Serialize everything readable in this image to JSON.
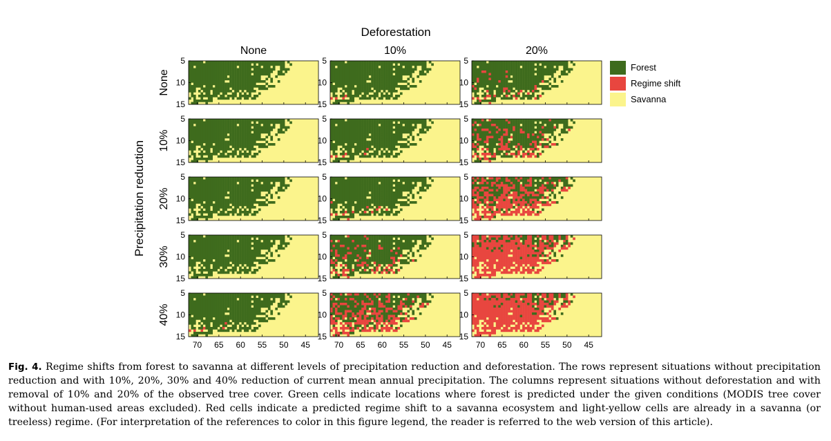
{
  "figure": {
    "column_header": "Deforestation",
    "column_titles": [
      "None",
      "10%",
      "20%"
    ],
    "row_header": "Precipitation reduction",
    "row_titles": [
      "None",
      "10%",
      "20%",
      "30%",
      "40%"
    ],
    "y_ticks": [
      "5",
      "10",
      "15"
    ],
    "x_ticks": [
      "70",
      "65",
      "60",
      "55",
      "50",
      "45"
    ],
    "colors": {
      "forest": "#3e6b1d",
      "regime_shift": "#e8463f",
      "savanna": "#fbf48c"
    },
    "legend": [
      {
        "label": "Forest",
        "color": "#3e6b1d"
      },
      {
        "label": "Regime shift",
        "color": "#e8463f"
      },
      {
        "label": "Savanna",
        "color": "#fbf48c"
      }
    ]
  },
  "chart_data": {
    "type": "heatmap",
    "xlabel": "",
    "ylabel": "",
    "xlim": [
      72,
      42
    ],
    "ylim": [
      5,
      15
    ],
    "xticks": [
      70,
      65,
      60,
      55,
      50,
      45
    ],
    "yticks": [
      5,
      10,
      15
    ],
    "categories": [
      "Forest",
      "Regime shift",
      "Savanna"
    ],
    "panels_rows": [
      "None",
      "10%",
      "20%",
      "30%",
      "40%"
    ],
    "panels_cols": [
      "None",
      "10%",
      "20%"
    ],
    "regime_shift_fraction_of_forest": [
      [
        0.0,
        0.08,
        0.2
      ],
      [
        0.01,
        0.1,
        0.33
      ],
      [
        0.02,
        0.12,
        0.62
      ],
      [
        0.03,
        0.28,
        0.88
      ],
      [
        0.1,
        0.52,
        0.93
      ]
    ]
  },
  "caption": {
    "label": "Fig. 4.",
    "text": " Regime shifts from forest to savanna at different levels of precipitation reduction and deforestation. The rows represent situations without precipitation reduction and with 10%, 20%, 30% and 40% reduction of current mean annual precipitation. The columns represent situations without deforestation and with removal of 10% and 20% of the observed tree cover. Green cells indicate locations where forest is predicted under the given conditions (MODIS tree cover without human-used areas excluded). Red cells indicate a predicted regime shift to a savanna ecosystem and light-yellow cells are already in a savanna (or treeless) regime. (For interpretation of the references to color in this figure legend, the reader is referred to the web version of this article)."
  }
}
